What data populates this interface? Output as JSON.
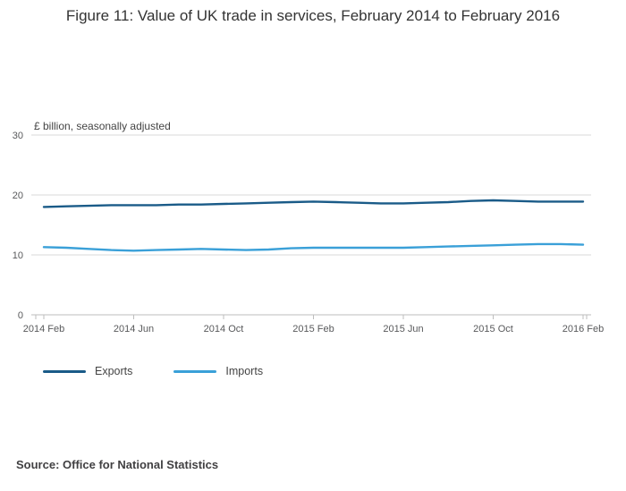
{
  "page": {
    "title": "Figure 11: Value of UK trade in services, February 2014 to February 2016"
  },
  "source": {
    "text": "Source: Office for National Statistics"
  },
  "chart_data": {
    "type": "line",
    "title": "Figure 11: Value of UK trade in services, February 2014 to February 2016",
    "xlabel": "",
    "ylabel": "£ billion, seasonally adjusted",
    "ylim": [
      0,
      30
    ],
    "yticks": [
      0,
      10,
      20,
      30
    ],
    "grid": "horizontal",
    "legend_position": "bottom",
    "x": [
      "2014 Feb",
      "2014 Mar",
      "2014 Apr",
      "2014 May",
      "2014 Jun",
      "2014 Jul",
      "2014 Aug",
      "2014 Sep",
      "2014 Oct",
      "2014 Nov",
      "2014 Dec",
      "2015 Jan",
      "2015 Feb",
      "2015 Mar",
      "2015 Apr",
      "2015 May",
      "2015 Jun",
      "2015 Jul",
      "2015 Aug",
      "2015 Sep",
      "2015 Oct",
      "2015 Nov",
      "2015 Dec",
      "2016 Jan",
      "2016 Feb"
    ],
    "xticks": [
      {
        "i": 0,
        "label": "2014 Feb"
      },
      {
        "i": 4,
        "label": "2014 Jun"
      },
      {
        "i": 8,
        "label": "2014 Oct"
      },
      {
        "i": 12,
        "label": "2015 Feb"
      },
      {
        "i": 16,
        "label": "2015 Jun"
      },
      {
        "i": 20,
        "label": "2015 Oct"
      },
      {
        "i": 24,
        "label": "2016 Feb"
      }
    ],
    "series": [
      {
        "name": "Exports",
        "color": "#1a5b88",
        "values": [
          18.0,
          18.1,
          18.2,
          18.3,
          18.3,
          18.3,
          18.4,
          18.4,
          18.5,
          18.6,
          18.7,
          18.8,
          18.9,
          18.8,
          18.7,
          18.6,
          18.6,
          18.7,
          18.8,
          19.0,
          19.1,
          19.0,
          18.9,
          18.9,
          18.9
        ]
      },
      {
        "name": "Imports",
        "color": "#3aa0d8",
        "values": [
          11.3,
          11.2,
          11.0,
          10.8,
          10.7,
          10.8,
          10.9,
          11.0,
          10.9,
          10.8,
          10.9,
          11.1,
          11.2,
          11.2,
          11.2,
          11.2,
          11.2,
          11.3,
          11.4,
          11.5,
          11.6,
          11.7,
          11.8,
          11.8,
          11.7
        ]
      }
    ],
    "colors": {
      "grid": "#dadada",
      "axis": "#bdbdbd",
      "tick_label": "#58595b",
      "unit_label": "#444444"
    }
  }
}
